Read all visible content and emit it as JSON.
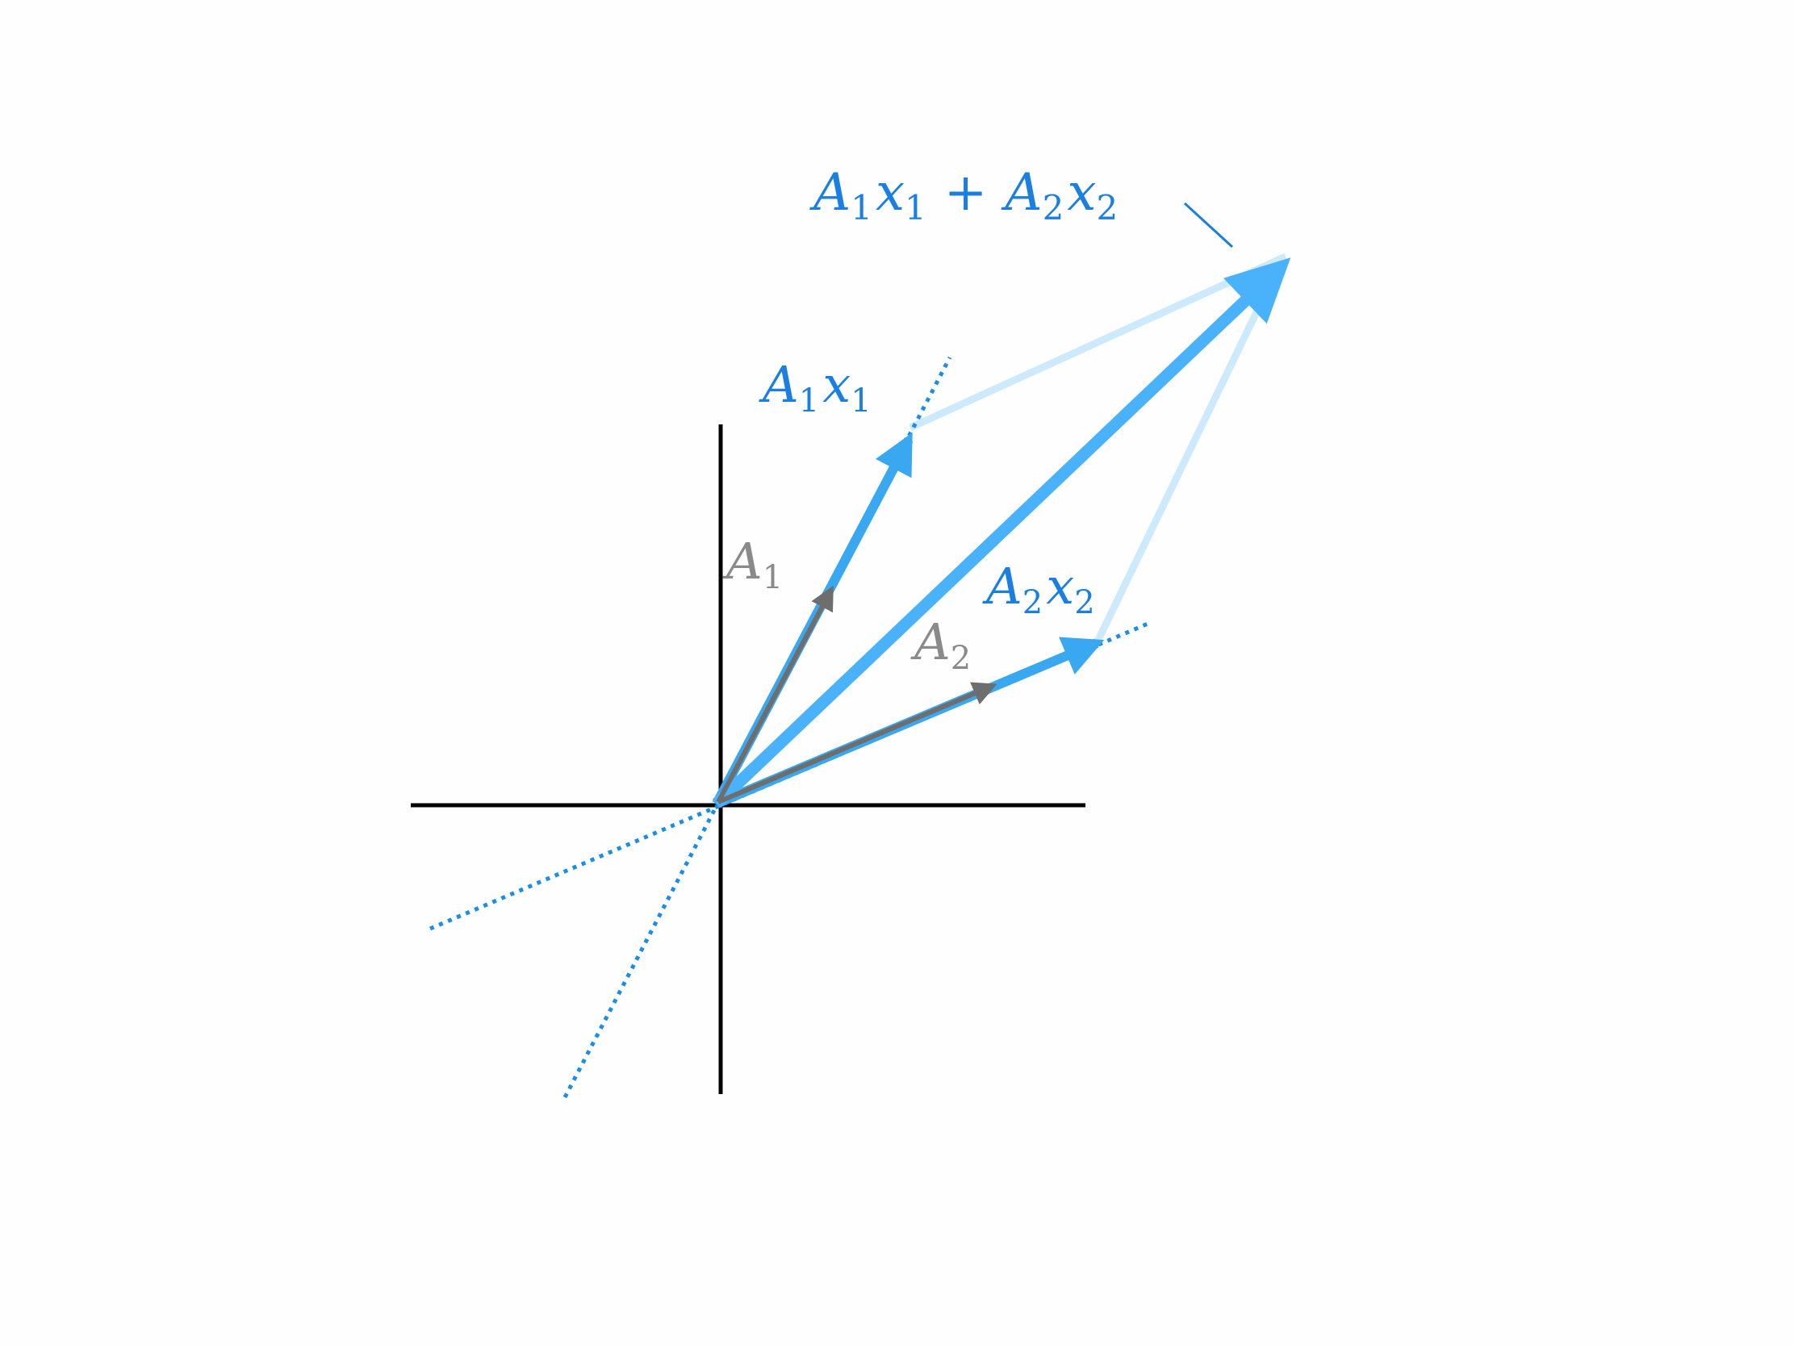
{
  "colors": {
    "background": "#fefefe",
    "axis": "#000000",
    "basis_vector": "#7a7a7a",
    "scaled_vector": "#3aa8f0",
    "sum_vector": "#4ab2fa",
    "parallelogram_edge": "#cde9fc",
    "span_line": "#1a8ee6",
    "label_blue": "#1a7fe0",
    "label_gray": "#8a8a8a"
  },
  "labels": {
    "sum": {
      "A1": "A",
      "sub1": "1",
      "x1": "x",
      "subx1": "1",
      "plus": "+",
      "A2": "A",
      "sub2": "2",
      "x2": "x",
      "subx2": "2"
    },
    "a1x1": {
      "A": "A",
      "subA": "1",
      "x": "x",
      "subx": "1"
    },
    "a2x2": {
      "A": "A",
      "subA": "2",
      "x": "x",
      "subx": "2"
    },
    "a1": {
      "A": "A",
      "sub": "1"
    },
    "a2": {
      "A": "A",
      "sub": "2"
    }
  }
}
